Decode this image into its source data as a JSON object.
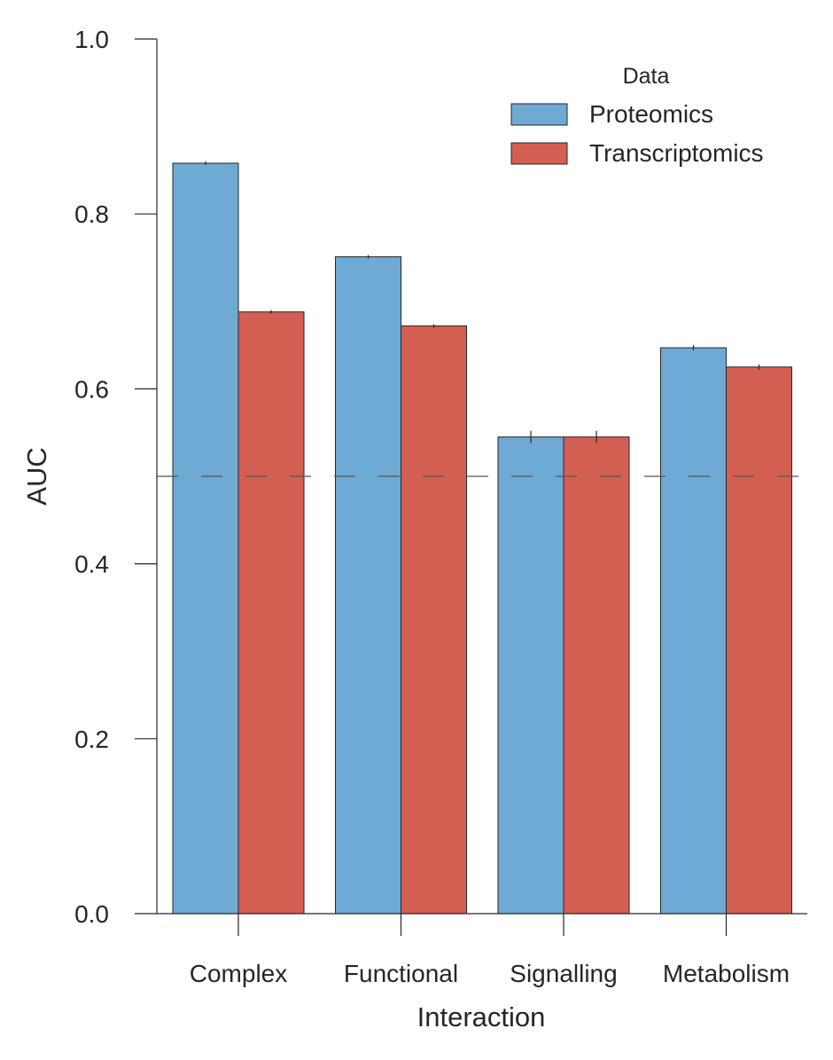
{
  "chart_data": {
    "type": "bar",
    "xlabel": "Interaction",
    "ylabel": "AUC",
    "categories": [
      "Complex",
      "Functional",
      "Signalling",
      "Metabolism"
    ],
    "series": [
      {
        "name": "Proteomics",
        "color": "#6FAAD4",
        "values": [
          0.858,
          0.751,
          0.545,
          0.647
        ],
        "errors": [
          0.001,
          0.001,
          0.006,
          0.002
        ]
      },
      {
        "name": "Transcriptomics",
        "color": "#D35F52",
        "values": [
          0.688,
          0.672,
          0.545,
          0.625
        ],
        "errors": [
          0.001,
          0.001,
          0.006,
          0.002
        ]
      }
    ],
    "ylim": [
      0,
      1.0
    ],
    "yticks": [
      "0.0",
      "0.2",
      "0.4",
      "0.6",
      "0.8",
      "1.0"
    ],
    "reference_line": 0.5,
    "grid": false,
    "legend": {
      "title": "Data",
      "position": "top-right"
    }
  }
}
